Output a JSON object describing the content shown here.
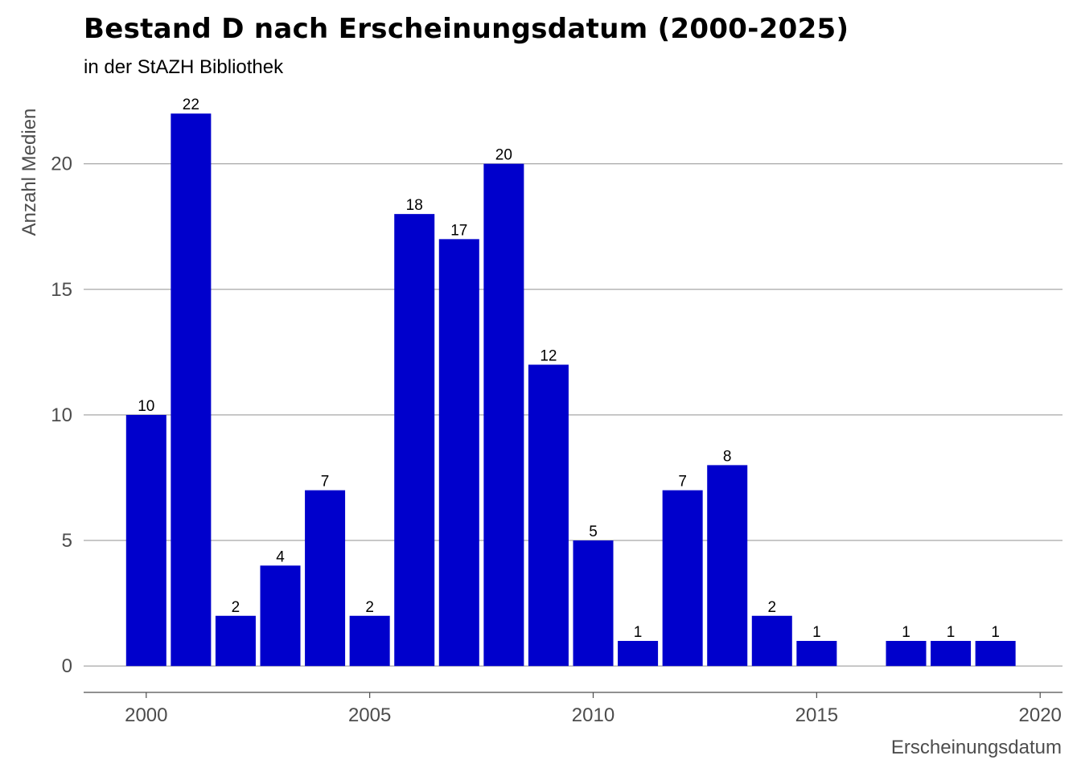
{
  "chart_data": {
    "type": "bar",
    "title": "Bestand D nach Erscheinungsdatum (2000-2025)",
    "subtitle": "in der StAZH Bibliothek",
    "xlabel": "Erscheinungsdatum",
    "ylabel": "Anzahl Medien",
    "x": [
      2000,
      2001,
      2002,
      2003,
      2004,
      2005,
      2006,
      2007,
      2008,
      2009,
      2010,
      2011,
      2012,
      2013,
      2014,
      2015,
      2017,
      2018,
      2019
    ],
    "values": [
      10,
      22,
      2,
      4,
      7,
      2,
      18,
      17,
      20,
      12,
      5,
      1,
      7,
      8,
      2,
      1,
      1,
      1,
      1
    ],
    "xlim": [
      1998.6,
      2020.5
    ],
    "ylim": [
      -1.05,
      23
    ],
    "xticks": [
      2000,
      2005,
      2010,
      2015,
      2020
    ],
    "yticks": [
      0,
      5,
      10,
      15,
      20
    ],
    "grid": "horizontal",
    "bar_color": "#0000CC",
    "legend": "none"
  }
}
